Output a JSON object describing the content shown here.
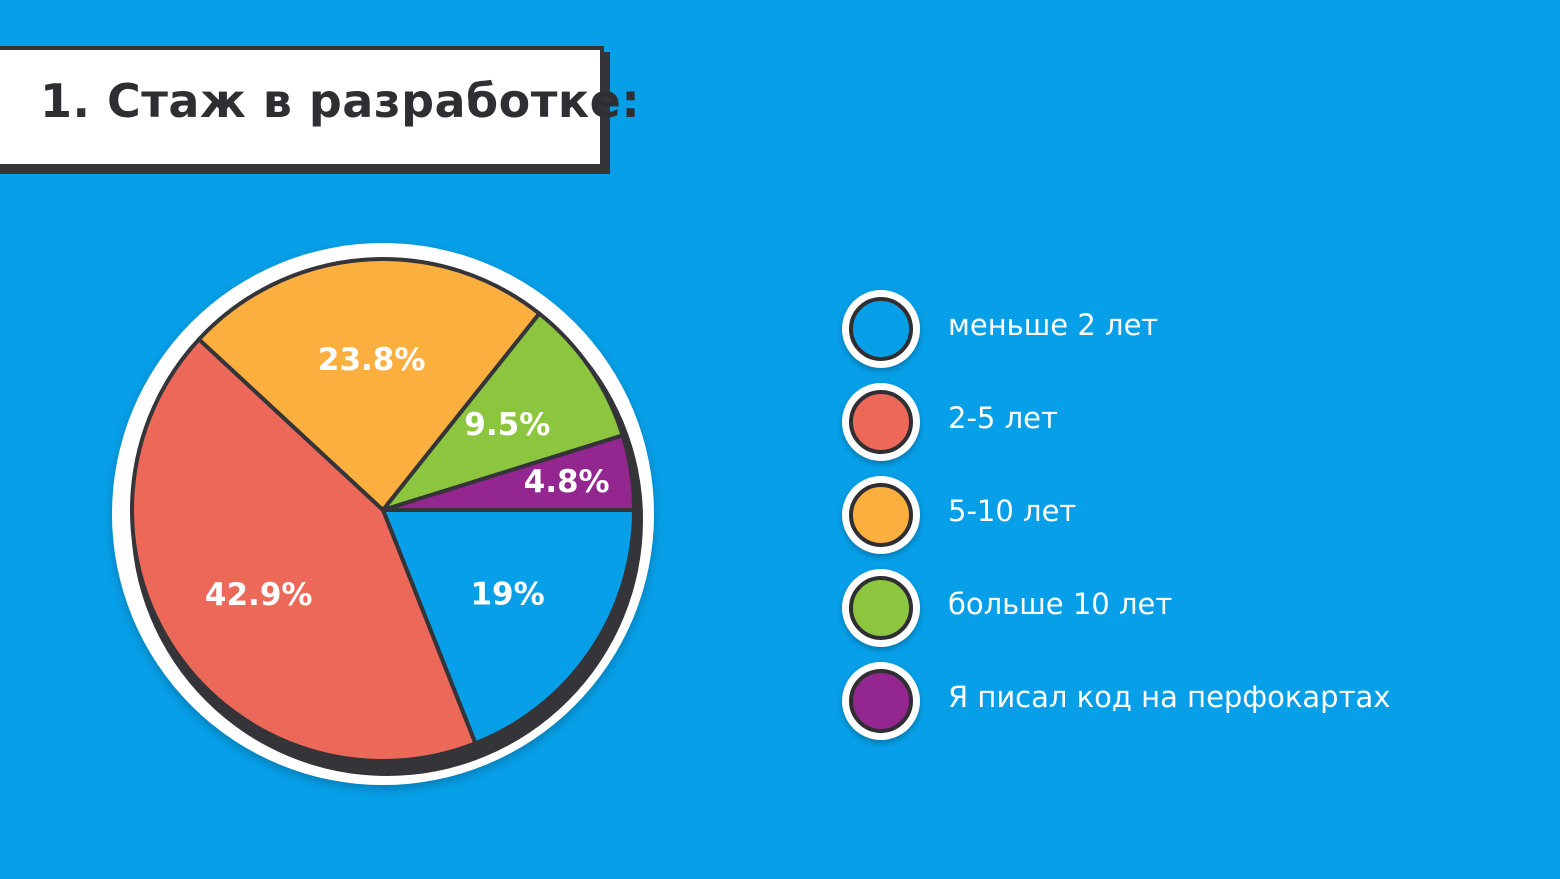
{
  "background_color": "#069fe8",
  "title": "1. Стаж в разработке:",
  "chart_data": {
    "type": "pie",
    "title": "1. Стаж в разработке:",
    "slices": [
      {
        "label": "меньше 2 лет",
        "value": 19,
        "display": "19%",
        "color": "#069fe8"
      },
      {
        "label": "2-5 лет",
        "value": 42.9,
        "display": "42.9%",
        "color": "#ec6858"
      },
      {
        "label": "5-10 лет",
        "value": 23.8,
        "display": "23.8%",
        "color": "#fbaf3f"
      },
      {
        "label": "больше 10 лет",
        "value": 9.5,
        "display": "9.5%",
        "color": "#8cc63f"
      },
      {
        "label": "Я писал код на перфокартах",
        "value": 4.8,
        "display": "4.8%",
        "color": "#93278f"
      }
    ],
    "start": "3 o'clock",
    "direction": "clockwise",
    "legend_position": "right"
  }
}
